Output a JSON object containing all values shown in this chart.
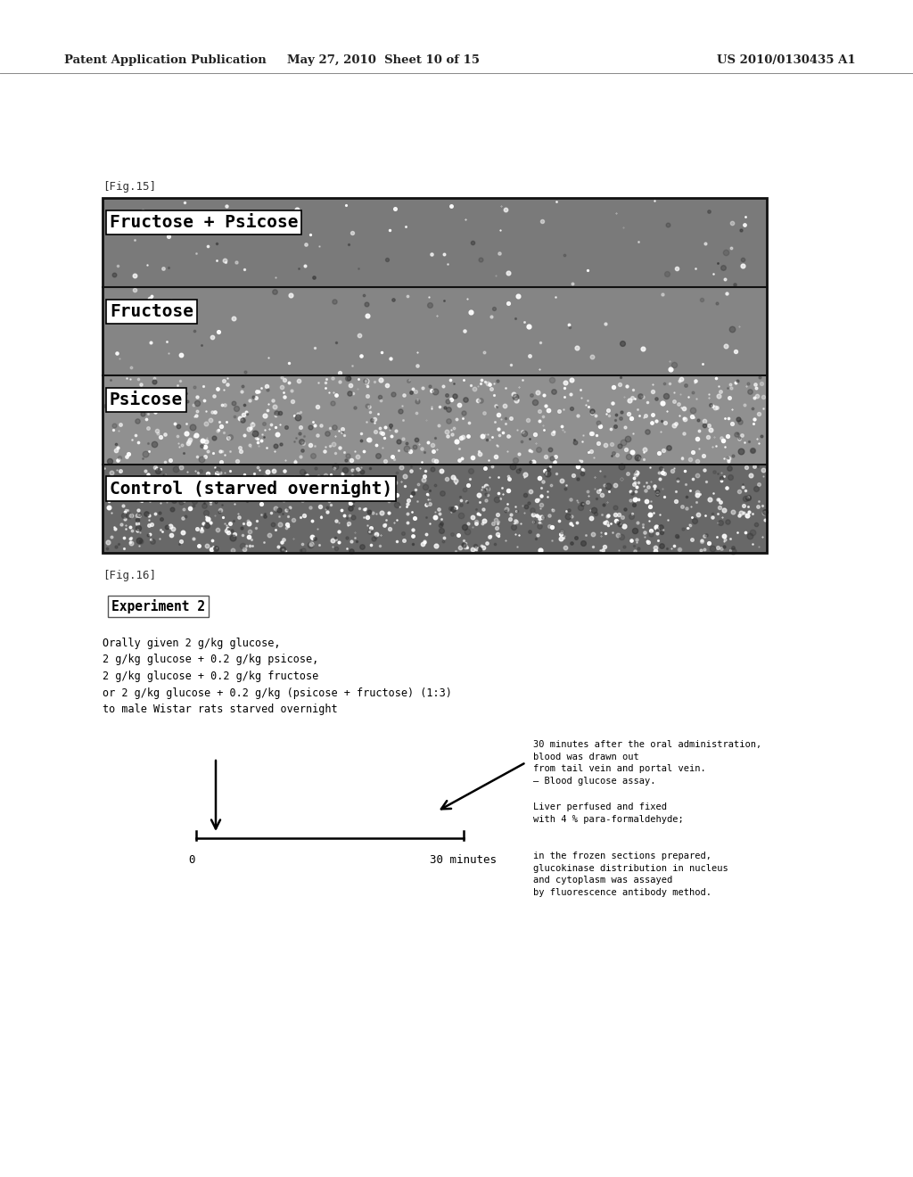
{
  "header_left": "Patent Application Publication",
  "header_mid": "May 27, 2010  Sheet 10 of 15",
  "header_right": "US 2010/0130435 A1",
  "fig15_label": "[Fig.15]",
  "fig15_panels": [
    "Fructose + Psicose",
    "Fructose",
    "Psicose",
    "Control (starved overnight)"
  ],
  "fig16_label": "[Fig.16]",
  "experiment_box_text": "Experiment 2",
  "experiment_desc": "Orally given 2 g/kg glucose,\n2 g/kg glucose + 0.2 g/kg psicose,\n2 g/kg glucose + 0.2 g/kg fructose\nor 2 g/kg glucose + 0.2 g/kg (psicose + fructose) (1:3)\nto male Wistar rats starved overnight",
  "note1": "30 minutes after the oral administration,\nblood was drawn out\nfrom tail vein and portal vein.\n― Blood glucose assay.",
  "note2": "Liver perfused and fixed\nwith 4 % para-formaldehyde;",
  "note3": "in the frozen sections prepared,\nglucokinase distribution in nucleus\nand cytoplasm was assayed\nby fluorescence antibody method.",
  "label_0": "0",
  "label_30": "30 minutes",
  "bg_color": "#ffffff"
}
